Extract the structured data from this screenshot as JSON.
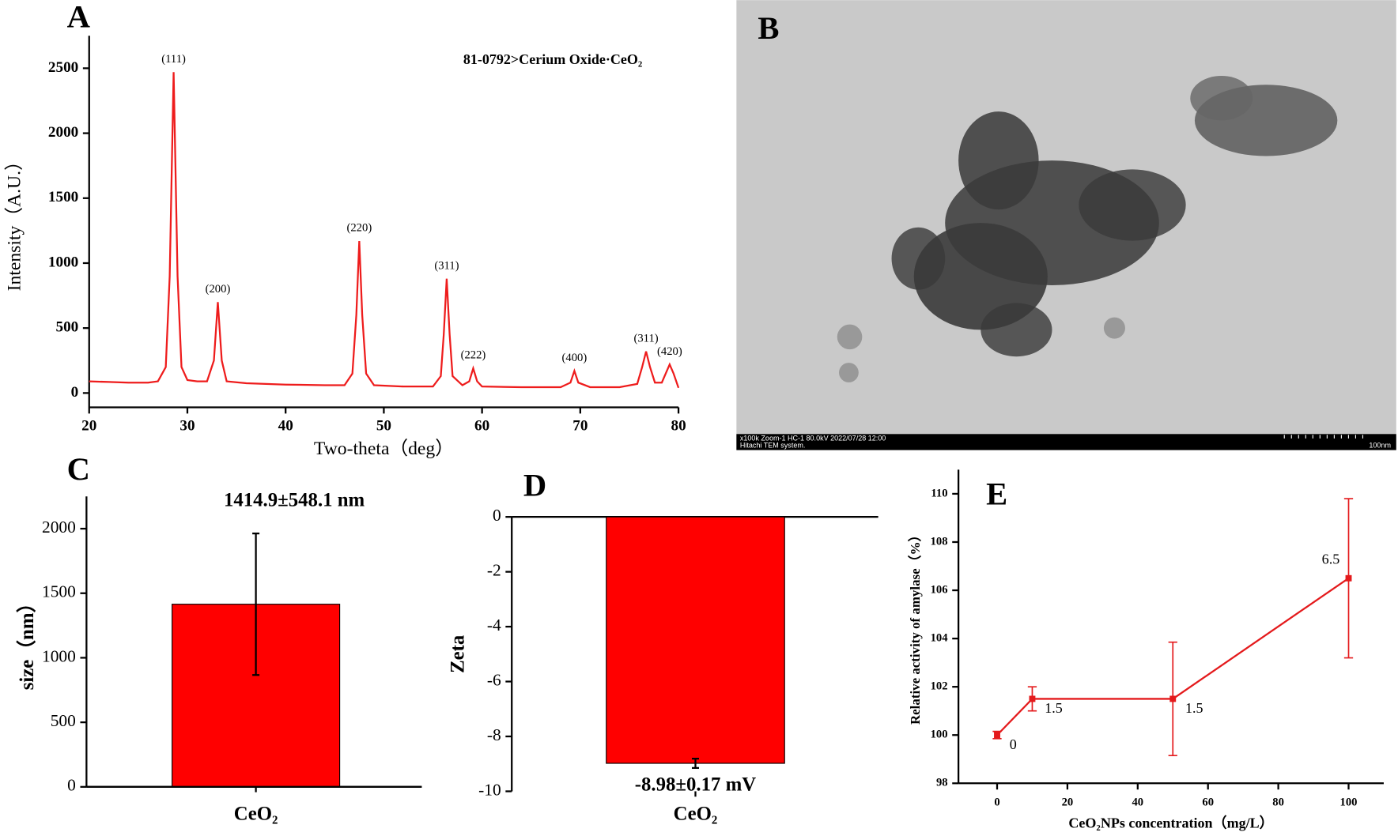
{
  "image_panel": {
    "panel_label": "B",
    "caption": "x100k Zoom-1 HC-1 80.0kV 2022/07/28 12:00",
    "system": "Hitachi TEM system.",
    "scale_bar": "100nm"
  },
  "chart_data": [
    {
      "type": "line",
      "panel_label": "A",
      "xlabel": "Two-theta（deg）",
      "ylabel": "Intensity（A.U.）",
      "annotation": "81-0792>Cerium Oxide·CeO₂",
      "color": "#ee1c1c",
      "xlim": [
        20,
        80
      ],
      "xticks": [
        20,
        30,
        40,
        50,
        60,
        70,
        80
      ],
      "ylim": [
        -110,
        2750
      ],
      "yticks": [
        0,
        500,
        1000,
        1500,
        2000,
        2500
      ],
      "x": [
        20,
        22,
        24,
        26,
        27,
        27.8,
        28.2,
        28.6,
        29,
        29.4,
        30,
        31,
        32,
        32.7,
        33.1,
        33.5,
        34,
        36,
        40,
        44,
        46,
        46.8,
        47.2,
        47.5,
        47.8,
        48.2,
        49,
        52,
        55,
        55.8,
        56.1,
        56.4,
        56.7,
        57,
        58,
        58.7,
        59.1,
        59.5,
        60,
        64,
        68,
        69,
        69.4,
        69.8,
        71,
        74,
        75.8,
        76.3,
        76.7,
        77.1,
        77.6,
        78.3,
        78.7,
        79.1,
        79.5,
        80
      ],
      "y": [
        90,
        85,
        80,
        80,
        90,
        200,
        900,
        2470,
        900,
        200,
        100,
        90,
        90,
        250,
        700,
        250,
        90,
        75,
        65,
        60,
        60,
        150,
        600,
        1170,
        600,
        150,
        60,
        50,
        50,
        130,
        450,
        880,
        450,
        130,
        60,
        90,
        190,
        90,
        50,
        45,
        45,
        80,
        170,
        80,
        45,
        45,
        70,
        200,
        320,
        200,
        80,
        80,
        150,
        220,
        150,
        40
      ],
      "peaks": [
        {
          "label": "(111)",
          "x": 28.6,
          "y": 2470
        },
        {
          "label": "(200)",
          "x": 33.1,
          "y": 700
        },
        {
          "label": "(220)",
          "x": 47.5,
          "y": 1170
        },
        {
          "label": "(311)",
          "x": 56.4,
          "y": 880
        },
        {
          "label": "(222)",
          "x": 59.1,
          "y": 190
        },
        {
          "label": "(400)",
          "x": 69.4,
          "y": 170
        },
        {
          "label": "(311)",
          "x": 76.7,
          "y": 320
        },
        {
          "label": "(420)",
          "x": 79.1,
          "y": 220
        }
      ]
    },
    {
      "type": "bar",
      "panel_label": "C",
      "title": "1414.9±548.1 nm",
      "ylabel": "size（nm）",
      "color": "#ff0000",
      "categories": [
        "CeO₂"
      ],
      "values": [
        1414.9
      ],
      "errors": [
        548.1
      ],
      "ylim": [
        0,
        2250
      ],
      "yticks": [
        0,
        500,
        1000,
        1500,
        2000
      ]
    },
    {
      "type": "bar",
      "panel_label": "D",
      "title": "-8.98±0.17 mV",
      "ylabel": "Zeta",
      "color": "#ff0000",
      "categories": [
        "CeO₂"
      ],
      "values": [
        -8.98
      ],
      "errors": [
        0.17
      ],
      "ylim": [
        -10,
        0
      ],
      "yticks": [
        0,
        -2,
        -4,
        -6,
        -8,
        -10
      ]
    },
    {
      "type": "line",
      "panel_label": "E",
      "xlabel": "CeO₂NPs concentration（mg/L）",
      "ylabel": "Relative activity of amylase（%）",
      "color": "#e41a1c",
      "xlim": [
        -11,
        110
      ],
      "xticks": [
        0,
        20,
        40,
        60,
        80,
        100
      ],
      "ylim": [
        98,
        111
      ],
      "yticks": [
        98,
        100,
        102,
        104,
        106,
        108,
        110
      ],
      "x": [
        0,
        10,
        50,
        100
      ],
      "y": [
        100,
        101.5,
        101.5,
        106.5
      ],
      "errors": [
        0.15,
        0.5,
        2.35,
        3.3
      ],
      "point_labels": [
        "0",
        "1.5",
        "1.5",
        "6.5"
      ]
    }
  ]
}
